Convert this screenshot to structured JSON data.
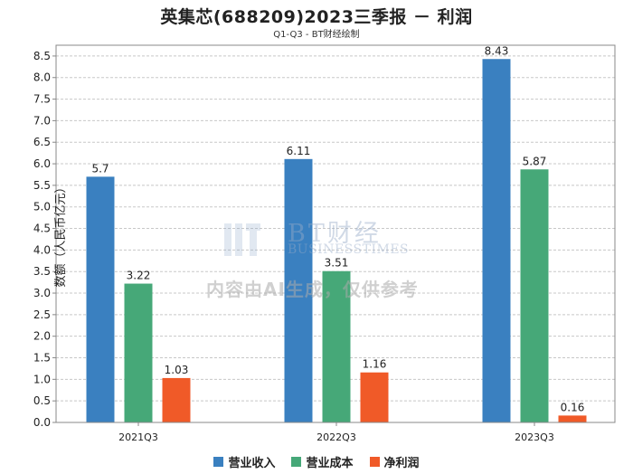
{
  "title": "英集芯(688209)2023三季报 － 利润",
  "subtitle": "Q1-Q3 - BT财经绘制",
  "watermark": {
    "brand": "BT财经",
    "brand_sub": "BUSINESSTIMES",
    "notice": "内容由AI生成，仅供参考"
  },
  "colors": {
    "grid": "#c8c8c8",
    "axis": "#888888"
  },
  "chart_data": {
    "type": "bar",
    "title": "英集芯(688209)2023三季报 － 利润",
    "subtitle": "Q1-Q3 - BT财经绘制",
    "xlabel": "",
    "ylabel": "数额（人民币亿元）",
    "ylim": [
      0,
      8.75
    ],
    "yticks": [
      "0.0",
      "0.5",
      "1.0",
      "1.5",
      "2.0",
      "2.5",
      "3.0",
      "3.5",
      "4.0",
      "4.5",
      "5.0",
      "5.5",
      "6.0",
      "6.5",
      "7.0",
      "7.5",
      "8.0",
      "8.5"
    ],
    "grid": true,
    "legend_position": "bottom",
    "categories": [
      "2021Q3",
      "2022Q3",
      "2023Q3"
    ],
    "series": [
      {
        "name": "营业收入",
        "color": "#3a80c0",
        "values": [
          5.7,
          6.11,
          8.43
        ],
        "labels": [
          "5.7",
          "6.11",
          "8.43"
        ]
      },
      {
        "name": "营业成本",
        "color": "#46a878",
        "values": [
          3.22,
          3.51,
          5.87
        ],
        "labels": [
          "3.22",
          "3.51",
          "5.87"
        ]
      },
      {
        "name": "净利润",
        "color": "#f05a28",
        "values": [
          1.03,
          1.16,
          0.16
        ],
        "labels": [
          "1.03",
          "1.16",
          "0.16"
        ]
      }
    ]
  }
}
